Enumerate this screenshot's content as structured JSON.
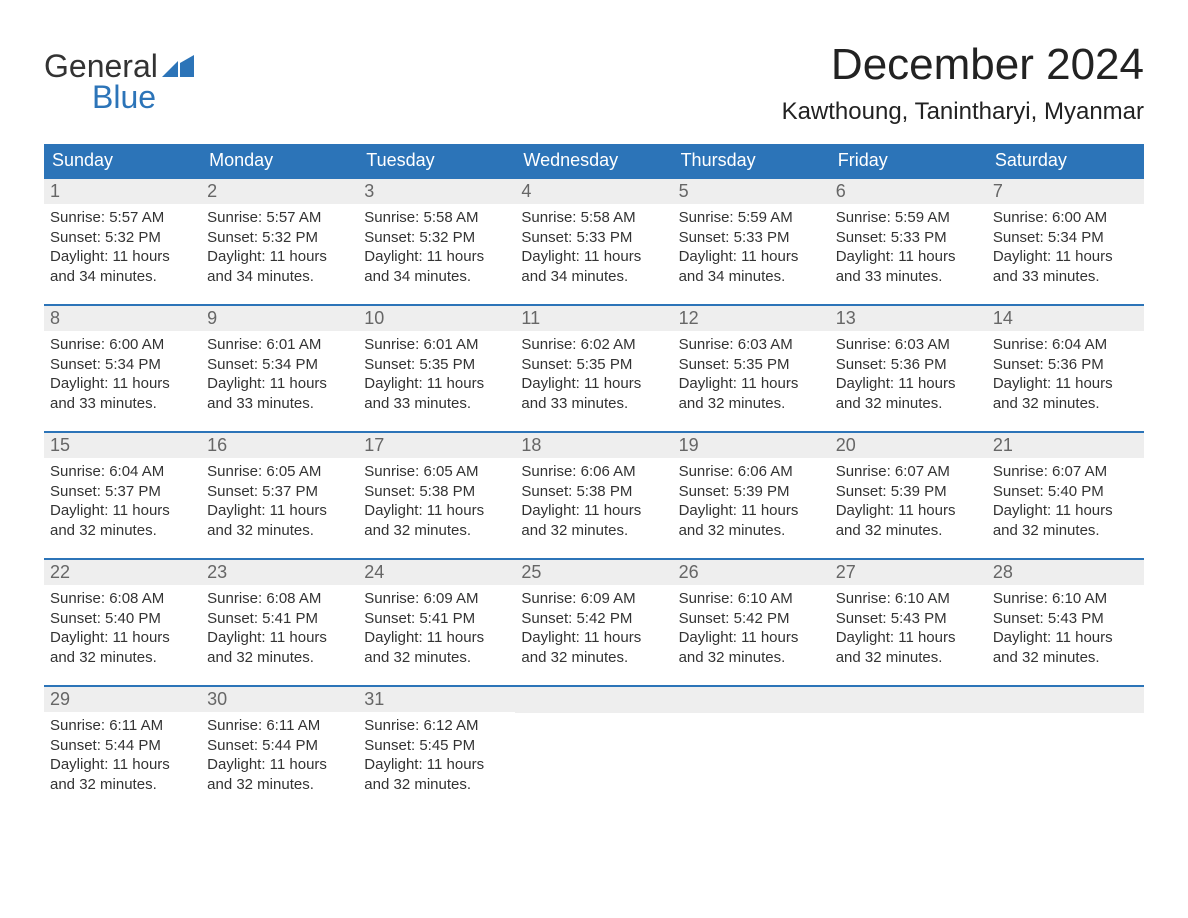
{
  "logo": {
    "text1": "General",
    "text2": "Blue",
    "flag_color": "#2c74b8"
  },
  "title": "December 2024",
  "location": "Kawthoung, Tanintharyi, Myanmar",
  "colors": {
    "header_bg": "#2c74b8",
    "header_text": "#ffffff",
    "daynum_bg": "#eeeeee",
    "daynum_text": "#666666",
    "body_text": "#333333",
    "row_border": "#2c74b8",
    "page_bg": "#ffffff"
  },
  "typography": {
    "month_title_fontsize": 44,
    "location_fontsize": 24,
    "weekday_fontsize": 18,
    "daynum_fontsize": 18,
    "body_fontsize": 15
  },
  "weekdays": [
    "Sunday",
    "Monday",
    "Tuesday",
    "Wednesday",
    "Thursday",
    "Friday",
    "Saturday"
  ],
  "labels": {
    "sunrise": "Sunrise:",
    "sunset": "Sunset:",
    "daylight": "Daylight:"
  },
  "weeks": [
    [
      {
        "day": "1",
        "sunrise": "5:57 AM",
        "sunset": "5:32 PM",
        "daylight_l1": "11 hours",
        "daylight_l2": "and 34 minutes."
      },
      {
        "day": "2",
        "sunrise": "5:57 AM",
        "sunset": "5:32 PM",
        "daylight_l1": "11 hours",
        "daylight_l2": "and 34 minutes."
      },
      {
        "day": "3",
        "sunrise": "5:58 AM",
        "sunset": "5:32 PM",
        "daylight_l1": "11 hours",
        "daylight_l2": "and 34 minutes."
      },
      {
        "day": "4",
        "sunrise": "5:58 AM",
        "sunset": "5:33 PM",
        "daylight_l1": "11 hours",
        "daylight_l2": "and 34 minutes."
      },
      {
        "day": "5",
        "sunrise": "5:59 AM",
        "sunset": "5:33 PM",
        "daylight_l1": "11 hours",
        "daylight_l2": "and 34 minutes."
      },
      {
        "day": "6",
        "sunrise": "5:59 AM",
        "sunset": "5:33 PM",
        "daylight_l1": "11 hours",
        "daylight_l2": "and 33 minutes."
      },
      {
        "day": "7",
        "sunrise": "6:00 AM",
        "sunset": "5:34 PM",
        "daylight_l1": "11 hours",
        "daylight_l2": "and 33 minutes."
      }
    ],
    [
      {
        "day": "8",
        "sunrise": "6:00 AM",
        "sunset": "5:34 PM",
        "daylight_l1": "11 hours",
        "daylight_l2": "and 33 minutes."
      },
      {
        "day": "9",
        "sunrise": "6:01 AM",
        "sunset": "5:34 PM",
        "daylight_l1": "11 hours",
        "daylight_l2": "and 33 minutes."
      },
      {
        "day": "10",
        "sunrise": "6:01 AM",
        "sunset": "5:35 PM",
        "daylight_l1": "11 hours",
        "daylight_l2": "and 33 minutes."
      },
      {
        "day": "11",
        "sunrise": "6:02 AM",
        "sunset": "5:35 PM",
        "daylight_l1": "11 hours",
        "daylight_l2": "and 33 minutes."
      },
      {
        "day": "12",
        "sunrise": "6:03 AM",
        "sunset": "5:35 PM",
        "daylight_l1": "11 hours",
        "daylight_l2": "and 32 minutes."
      },
      {
        "day": "13",
        "sunrise": "6:03 AM",
        "sunset": "5:36 PM",
        "daylight_l1": "11 hours",
        "daylight_l2": "and 32 minutes."
      },
      {
        "day": "14",
        "sunrise": "6:04 AM",
        "sunset": "5:36 PM",
        "daylight_l1": "11 hours",
        "daylight_l2": "and 32 minutes."
      }
    ],
    [
      {
        "day": "15",
        "sunrise": "6:04 AM",
        "sunset": "5:37 PM",
        "daylight_l1": "11 hours",
        "daylight_l2": "and 32 minutes."
      },
      {
        "day": "16",
        "sunrise": "6:05 AM",
        "sunset": "5:37 PM",
        "daylight_l1": "11 hours",
        "daylight_l2": "and 32 minutes."
      },
      {
        "day": "17",
        "sunrise": "6:05 AM",
        "sunset": "5:38 PM",
        "daylight_l1": "11 hours",
        "daylight_l2": "and 32 minutes."
      },
      {
        "day": "18",
        "sunrise": "6:06 AM",
        "sunset": "5:38 PM",
        "daylight_l1": "11 hours",
        "daylight_l2": "and 32 minutes."
      },
      {
        "day": "19",
        "sunrise": "6:06 AM",
        "sunset": "5:39 PM",
        "daylight_l1": "11 hours",
        "daylight_l2": "and 32 minutes."
      },
      {
        "day": "20",
        "sunrise": "6:07 AM",
        "sunset": "5:39 PM",
        "daylight_l1": "11 hours",
        "daylight_l2": "and 32 minutes."
      },
      {
        "day": "21",
        "sunrise": "6:07 AM",
        "sunset": "5:40 PM",
        "daylight_l1": "11 hours",
        "daylight_l2": "and 32 minutes."
      }
    ],
    [
      {
        "day": "22",
        "sunrise": "6:08 AM",
        "sunset": "5:40 PM",
        "daylight_l1": "11 hours",
        "daylight_l2": "and 32 minutes."
      },
      {
        "day": "23",
        "sunrise": "6:08 AM",
        "sunset": "5:41 PM",
        "daylight_l1": "11 hours",
        "daylight_l2": "and 32 minutes."
      },
      {
        "day": "24",
        "sunrise": "6:09 AM",
        "sunset": "5:41 PM",
        "daylight_l1": "11 hours",
        "daylight_l2": "and 32 minutes."
      },
      {
        "day": "25",
        "sunrise": "6:09 AM",
        "sunset": "5:42 PM",
        "daylight_l1": "11 hours",
        "daylight_l2": "and 32 minutes."
      },
      {
        "day": "26",
        "sunrise": "6:10 AM",
        "sunset": "5:42 PM",
        "daylight_l1": "11 hours",
        "daylight_l2": "and 32 minutes."
      },
      {
        "day": "27",
        "sunrise": "6:10 AM",
        "sunset": "5:43 PM",
        "daylight_l1": "11 hours",
        "daylight_l2": "and 32 minutes."
      },
      {
        "day": "28",
        "sunrise": "6:10 AM",
        "sunset": "5:43 PM",
        "daylight_l1": "11 hours",
        "daylight_l2": "and 32 minutes."
      }
    ],
    [
      {
        "day": "29",
        "sunrise": "6:11 AM",
        "sunset": "5:44 PM",
        "daylight_l1": "11 hours",
        "daylight_l2": "and 32 minutes."
      },
      {
        "day": "30",
        "sunrise": "6:11 AM",
        "sunset": "5:44 PM",
        "daylight_l1": "11 hours",
        "daylight_l2": "and 32 minutes."
      },
      {
        "day": "31",
        "sunrise": "6:12 AM",
        "sunset": "5:45 PM",
        "daylight_l1": "11 hours",
        "daylight_l2": "and 32 minutes."
      },
      {
        "empty": true
      },
      {
        "empty": true
      },
      {
        "empty": true
      },
      {
        "empty": true
      }
    ]
  ]
}
